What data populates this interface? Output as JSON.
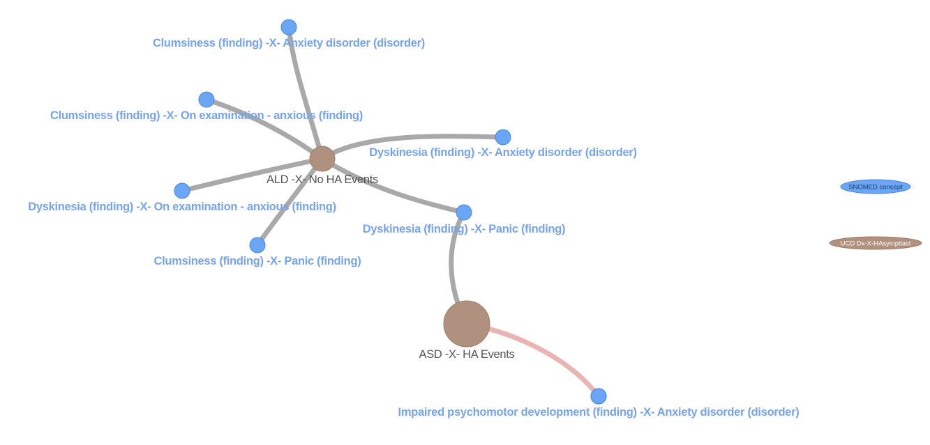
{
  "colors": {
    "concept_fill": "#6aa6f5",
    "concept_stroke": "#4a87d6",
    "concept_label": "#79a4e3",
    "group_fill": "#b0907e",
    "group_stroke": "#9c7b69",
    "group_label": "#555555",
    "edge_default": "#a9a9a9",
    "edge_highlight": "#e8b4b4"
  },
  "nodes": {
    "ald": {
      "label": "ALD -X- No HA Events",
      "type": "group"
    },
    "asd": {
      "label": "ASD -X- HA Events",
      "type": "group"
    },
    "clumsiness_anxiety_disorder": {
      "label": "Clumsiness (finding) -X- Anxiety disorder (disorder)",
      "type": "concept"
    },
    "clumsiness_on_examination_anxious": {
      "label": "Clumsiness (finding) -X- On examination - anxious (finding)",
      "type": "concept"
    },
    "dyskinesia_anxiety_disorder": {
      "label": "Dyskinesia (finding) -X- Anxiety disorder (disorder)",
      "type": "concept"
    },
    "dyskinesia_on_examination_anxious": {
      "label": "Dyskinesia (finding) -X- On examination - anxious (finding)",
      "type": "concept"
    },
    "dyskinesia_panic": {
      "label": "Dyskinesia (finding) -X- Panic (finding)",
      "type": "concept"
    },
    "clumsiness_panic": {
      "label": "Clumsiness (finding) -X- Panic (finding)",
      "type": "concept"
    },
    "impaired_psychomotor_anxiety_disorder": {
      "label": "Impaired psychomotor development (finding) -X- Anxiety disorder (disorder)",
      "type": "concept"
    }
  },
  "edges": [
    {
      "from": "ald",
      "to": "clumsiness_anxiety_disorder",
      "style": "default"
    },
    {
      "from": "ald",
      "to": "clumsiness_on_examination_anxious",
      "style": "default"
    },
    {
      "from": "ald",
      "to": "dyskinesia_anxiety_disorder",
      "style": "default"
    },
    {
      "from": "ald",
      "to": "dyskinesia_on_examination_anxious",
      "style": "default"
    },
    {
      "from": "ald",
      "to": "dyskinesia_panic",
      "style": "default"
    },
    {
      "from": "ald",
      "to": "clumsiness_panic",
      "style": "default"
    },
    {
      "from": "asd",
      "to": "dyskinesia_panic",
      "style": "default"
    },
    {
      "from": "asd",
      "to": "impaired_psychomotor_anxiety_disorder",
      "style": "highlight"
    }
  ],
  "legend": {
    "concept": "SNOMED concept",
    "group": "UCD Dx-X-HAsymptlast"
  }
}
